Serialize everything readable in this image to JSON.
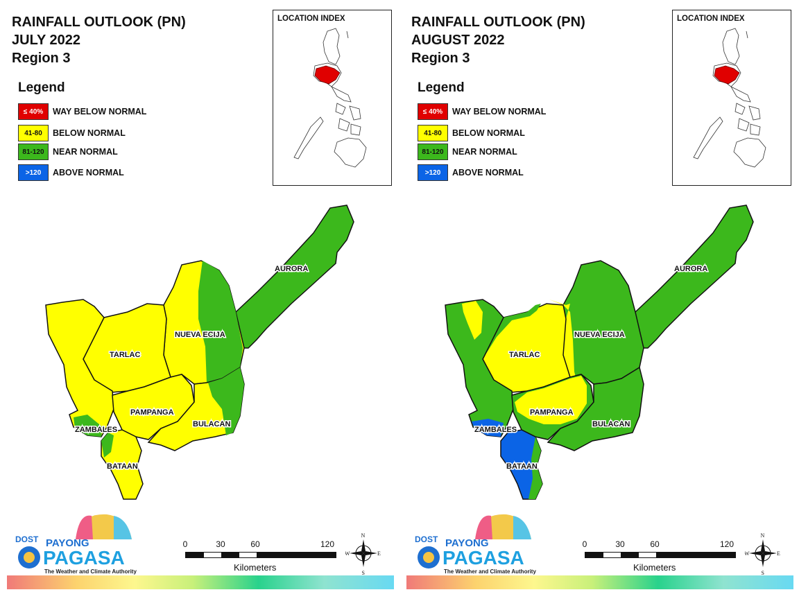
{
  "panels": [
    {
      "title": {
        "line1": "RAINFALL OUTLOOK (PN)",
        "line2": "JULY 2022",
        "line3": "Region 3"
      },
      "legend": {
        "title": "Legend",
        "items": [
          {
            "swatch": "≤ 40%",
            "label": "WAY BELOW NORMAL",
            "color": "#e00000"
          },
          {
            "swatch": "41-80",
            "label": "BELOW NORMAL",
            "color": "#ffff00"
          },
          {
            "swatch": "81-120",
            "label": "NEAR NORMAL",
            "color": "#3cb81c"
          },
          {
            "swatch": ">120",
            "label": "ABOVE NORMAL",
            "color": "#0b64e6"
          }
        ]
      },
      "location_index": {
        "title": "LOCATION INDEX"
      },
      "provinces": {
        "aurora": "AURORA",
        "nueva_ecija": "NUEVA ECIJA",
        "tarlac": "TARLAC",
        "pampanga": "PAMPANGA",
        "bulacan": "BULACAN",
        "zambales": "ZAMBALES",
        "bataan": "BATAAN"
      },
      "province_categories": {
        "aurora": "NEAR NORMAL",
        "nueva_ecija": "BELOW NORMAL / NEAR NORMAL",
        "tarlac": "BELOW NORMAL",
        "pampanga": "BELOW NORMAL",
        "bulacan": "BELOW NORMAL / NEAR NORMAL",
        "zambales": "BELOW NORMAL / NEAR NORMAL",
        "bataan": "BELOW NORMAL / NEAR NORMAL"
      },
      "logo": {
        "dost": "DOST",
        "payong": "PAYONG",
        "pagasa": "PAGASA",
        "tagline": "The Weather and Climate Authority"
      },
      "scale": {
        "ticks": [
          "0",
          "30",
          "60",
          "120"
        ],
        "unit": "Kilometers"
      },
      "compass": {
        "n": "N",
        "s": "S",
        "e": "E",
        "w": "W"
      }
    },
    {
      "title": {
        "line1": "RAINFALL OUTLOOK (PN)",
        "line2": "AUGUST 2022",
        "line3": "Region 3"
      },
      "legend": {
        "title": "Legend",
        "items": [
          {
            "swatch": "≤ 40%",
            "label": "WAY BELOW NORMAL",
            "color": "#e00000"
          },
          {
            "swatch": "41-80",
            "label": "BELOW NORMAL",
            "color": "#ffff00"
          },
          {
            "swatch": "81-120",
            "label": "NEAR NORMAL",
            "color": "#3cb81c"
          },
          {
            "swatch": ">120",
            "label": "ABOVE NORMAL",
            "color": "#0b64e6"
          }
        ]
      },
      "location_index": {
        "title": "LOCATION INDEX"
      },
      "provinces": {
        "aurora": "AURORA",
        "nueva_ecija": "NUEVA ECIJA",
        "tarlac": "TARLAC",
        "pampanga": "PAMPANGA",
        "bulacan": "BULACAN",
        "zambales": "ZAMBALES",
        "bataan": "BATAAN"
      },
      "province_categories": {
        "aurora": "NEAR NORMAL",
        "nueva_ecija": "NEAR NORMAL / BELOW NORMAL",
        "tarlac": "BELOW NORMAL / NEAR NORMAL",
        "pampanga": "BELOW NORMAL / NEAR NORMAL",
        "bulacan": "NEAR NORMAL",
        "zambales": "NEAR NORMAL / ABOVE NORMAL",
        "bataan": "ABOVE NORMAL / NEAR NORMAL"
      },
      "logo": {
        "dost": "DOST",
        "payong": "PAYONG",
        "pagasa": "PAGASA",
        "tagline": "The Weather and Climate Authority"
      },
      "scale": {
        "ticks": [
          "0",
          "30",
          "60",
          "120"
        ],
        "unit": "Kilometers"
      },
      "compass": {
        "n": "N",
        "s": "S",
        "e": "E",
        "w": "W"
      }
    }
  ],
  "colors": {
    "red": "#e00000",
    "yellow": "#ffff00",
    "green": "#3cb81c",
    "blue": "#0b64e6",
    "highlight": "#e00000"
  }
}
